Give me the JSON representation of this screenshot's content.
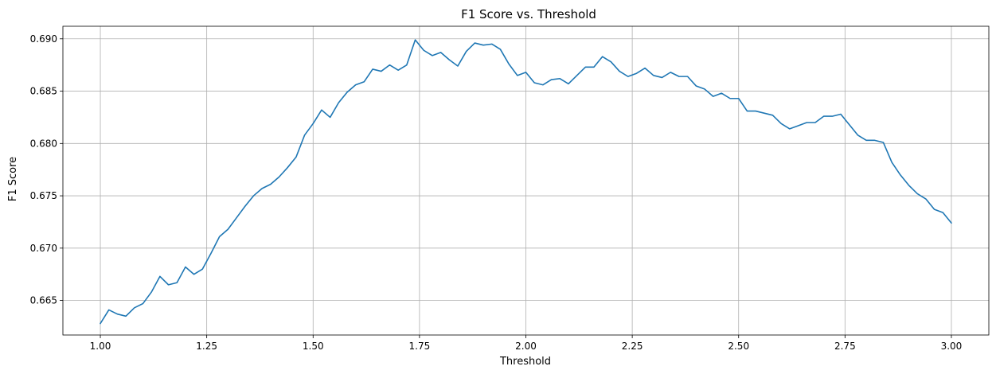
{
  "chart_data": {
    "type": "line",
    "title": "F1 Score vs. Threshold",
    "xlabel": "Threshold",
    "ylabel": "F1 Score",
    "xlim": [
      0.912,
      3.088
    ],
    "ylim": [
      0.6617,
      0.6912
    ],
    "xticks": [
      1.0,
      1.25,
      1.5,
      1.75,
      2.0,
      2.25,
      2.5,
      2.75,
      3.0
    ],
    "xtick_labels": [
      "1.00",
      "1.25",
      "1.50",
      "1.75",
      "2.00",
      "2.25",
      "2.50",
      "2.75",
      "3.00"
    ],
    "yticks": [
      0.665,
      0.67,
      0.675,
      0.68,
      0.685,
      0.69
    ],
    "ytick_labels": [
      "0.665",
      "0.670",
      "0.675",
      "0.680",
      "0.685",
      "0.690"
    ],
    "grid": true,
    "line_color": "#1f77b4",
    "series": [
      {
        "x": [
          1.0,
          1.02,
          1.04,
          1.06,
          1.08,
          1.1,
          1.12,
          1.14,
          1.16,
          1.18,
          1.2,
          1.22,
          1.24,
          1.26,
          1.28,
          1.3,
          1.32,
          1.34,
          1.36,
          1.38,
          1.4,
          1.42,
          1.44,
          1.46,
          1.48,
          1.5,
          1.52,
          1.54,
          1.56,
          1.58,
          1.6,
          1.62,
          1.64,
          1.66,
          1.68,
          1.7,
          1.72,
          1.74,
          1.76,
          1.78,
          1.8,
          1.82,
          1.84,
          1.86,
          1.88,
          1.9,
          1.92,
          1.94,
          1.96,
          1.98,
          2.0,
          2.02,
          2.04,
          2.06,
          2.08,
          2.1,
          2.12,
          2.14,
          2.16,
          2.18,
          2.2,
          2.22,
          2.24,
          2.26,
          2.28,
          2.3,
          2.32,
          2.34,
          2.36,
          2.38,
          2.4,
          2.42,
          2.44,
          2.46,
          2.48,
          2.5,
          2.52,
          2.54,
          2.56,
          2.58,
          2.6,
          2.62,
          2.64,
          2.66,
          2.68,
          2.7,
          2.72,
          2.74,
          2.76,
          2.78,
          2.8,
          2.82,
          2.84,
          2.86,
          2.88,
          2.9,
          2.92,
          2.94,
          2.96,
          2.98,
          3.0
        ],
        "y": [
          0.6628,
          0.6641,
          0.6637,
          0.6635,
          0.6643,
          0.6647,
          0.6658,
          0.6673,
          0.6665,
          0.6667,
          0.6682,
          0.6675,
          0.668,
          0.6695,
          0.6711,
          0.6718,
          0.6729,
          0.674,
          0.675,
          0.6757,
          0.6761,
          0.6768,
          0.6777,
          0.6787,
          0.6808,
          0.6819,
          0.6832,
          0.6825,
          0.6839,
          0.6849,
          0.6856,
          0.6859,
          0.6871,
          0.6869,
          0.6875,
          0.687,
          0.6875,
          0.6899,
          0.6889,
          0.6884,
          0.6887,
          0.688,
          0.6874,
          0.6888,
          0.6896,
          0.6894,
          0.6895,
          0.689,
          0.6876,
          0.6865,
          0.6868,
          0.6858,
          0.6856,
          0.6861,
          0.6862,
          0.6857,
          0.6865,
          0.6873,
          0.6873,
          0.6883,
          0.6878,
          0.6869,
          0.6864,
          0.6867,
          0.6872,
          0.6865,
          0.6863,
          0.6868,
          0.6864,
          0.6864,
          0.6855,
          0.6852,
          0.6845,
          0.6848,
          0.6843,
          0.6843,
          0.6831,
          0.6831,
          0.6829,
          0.6827,
          0.6819,
          0.6814,
          0.6817,
          0.682,
          0.682,
          0.6826,
          0.6826,
          0.6828,
          0.6818,
          0.6808,
          0.6803,
          0.6803,
          0.6801,
          0.6782,
          0.677,
          0.676,
          0.6752,
          0.6747,
          0.6737,
          0.6734,
          0.6724
        ]
      }
    ]
  }
}
